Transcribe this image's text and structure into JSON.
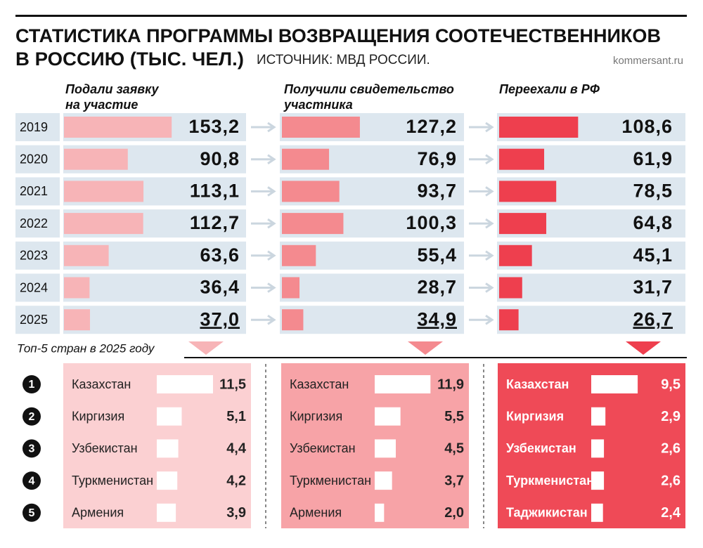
{
  "title_line1": "СТАТИСТИКА ПРОГРАММЫ ВОЗВРАЩЕНИЯ СООТЕЧЕСТВЕННИКОВ",
  "title_line2": "В РОССИЮ (ТЫС. ЧЕЛ.)",
  "source": "ИСТОЧНИК: МВД РОССИИ.",
  "site": "kommersant.ru",
  "top5_title": "Топ-5 стран в 2025 году",
  "ranks": [
    1,
    2,
    3,
    4,
    5
  ],
  "chart_data": [
    {
      "type": "bar",
      "title": [
        "Подали заявку",
        "на участие"
      ],
      "categories": [
        "2019",
        "2020",
        "2021",
        "2022",
        "2023",
        "2024",
        "2025"
      ],
      "values": [
        153.2,
        90.8,
        113.1,
        112.7,
        63.6,
        36.4,
        37.0
      ],
      "value_labels": [
        "153,2",
        "90,8",
        "113,1",
        "112,7",
        "63,6",
        "36,4",
        "37,0"
      ],
      "color": "#f7b4b7",
      "xlim": [
        0,
        150
      ]
    },
    {
      "type": "bar",
      "title": [
        "Получили свидетельство",
        "участника"
      ],
      "values": [
        127.2,
        76.9,
        93.7,
        100.3,
        55.4,
        28.7,
        34.9
      ],
      "value_labels": [
        "127,2",
        "76,9",
        "93,7",
        "100,3",
        "55,4",
        "28,7",
        "34,9"
      ],
      "color": "#f48a8f",
      "xlim": [
        0,
        172
      ]
    },
    {
      "type": "bar",
      "title": [
        "Переехали в РФ"
      ],
      "values": [
        108.6,
        61.9,
        78.5,
        64.8,
        45.1,
        31.7,
        26.7
      ],
      "value_labels": [
        "108,6",
        "61,9",
        "78,5",
        "64,8",
        "45,1",
        "31,7",
        "26,7"
      ],
      "color": "#ee3f4e",
      "xlim": [
        0,
        145
      ]
    },
    {
      "type": "bar",
      "categories": [
        "Казахстан",
        "Киргизия",
        "Узбекистан",
        "Туркменистан",
        "Армения"
      ],
      "values": [
        11.5,
        5.1,
        4.4,
        4.2,
        3.9
      ],
      "value_labels": [
        "11,5",
        "5,1",
        "4,4",
        "4,2",
        "3,9"
      ],
      "color": "#ffffff",
      "background": "#fbd0d2",
      "xlim": [
        0,
        11.5
      ]
    },
    {
      "type": "bar",
      "categories": [
        "Казахстан",
        "Киргизия",
        "Узбекистан",
        "Туркменистан",
        "Армения"
      ],
      "values": [
        11.9,
        5.5,
        4.5,
        3.7,
        2.0
      ],
      "value_labels": [
        "11,9",
        "5,5",
        "4,5",
        "3,7",
        "2,0"
      ],
      "color": "#ffffff",
      "background": "#f7a3a7",
      "xlim": [
        0,
        12
      ]
    },
    {
      "type": "bar",
      "categories": [
        "Казахстан",
        "Киргизия",
        "Узбекистан",
        "Туркменистан",
        "Таджикистан"
      ],
      "values": [
        9.5,
        2.9,
        2.6,
        2.6,
        2.4
      ],
      "value_labels": [
        "9,5",
        "2,9",
        "2,6",
        "2,6",
        "2,4"
      ],
      "color": "#ffffff",
      "background": "#ef4a57",
      "xlim": [
        0,
        11.5
      ]
    }
  ]
}
